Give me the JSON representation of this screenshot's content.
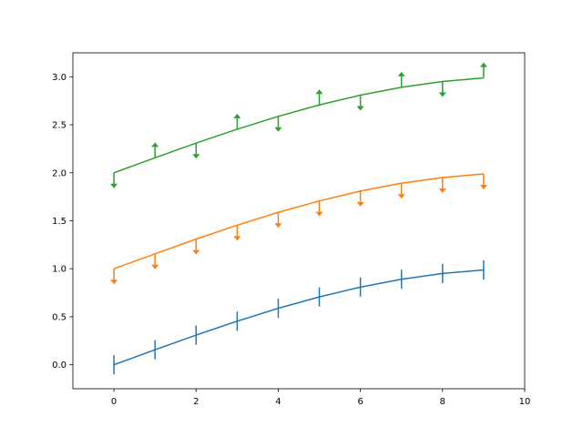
{
  "chart_data": {
    "type": "line",
    "title": "",
    "xlabel": "",
    "ylabel": "",
    "xlim": [
      -1,
      10
    ],
    "ylim": [
      -0.25,
      3.25
    ],
    "grid": false,
    "legend": "none",
    "xticks": [
      0,
      2,
      4,
      6,
      8,
      10
    ],
    "yticks": [
      0.0,
      0.5,
      1.0,
      1.5,
      2.0,
      2.5,
      3.0
    ],
    "xtick_labels": [
      "0",
      "2",
      "4",
      "6",
      "8",
      "10"
    ],
    "ytick_labels": [
      "0.0",
      "0.5",
      "1.0",
      "1.5",
      "2.0",
      "2.5",
      "3.0"
    ],
    "x": [
      0,
      1,
      2,
      3,
      4,
      5,
      6,
      7,
      8,
      9
    ],
    "series": [
      {
        "color": "#1f77b4",
        "values": [
          0.0,
          0.156,
          0.309,
          0.454,
          0.588,
          0.707,
          0.809,
          0.891,
          0.951,
          0.988
        ],
        "yerr": 0.1,
        "limits": [
          "both",
          "both",
          "both",
          "both",
          "both",
          "both",
          "both",
          "both",
          "both",
          "both"
        ]
      },
      {
        "color": "#ff7f0e",
        "values": [
          1.0,
          1.156,
          1.309,
          1.454,
          1.588,
          1.707,
          1.809,
          1.891,
          1.951,
          1.988
        ],
        "yerr": 0.1,
        "limits": [
          "upper",
          "upper",
          "upper",
          "upper",
          "upper",
          "upper",
          "upper",
          "upper",
          "upper",
          "upper"
        ]
      },
      {
        "color": "#2ca02c",
        "values": [
          2.0,
          2.156,
          2.309,
          2.454,
          2.588,
          2.707,
          2.809,
          2.891,
          2.951,
          2.988
        ],
        "yerr": 0.1,
        "limits": [
          "upper",
          "lower",
          "upper",
          "lower",
          "upper",
          "lower",
          "upper",
          "lower",
          "upper",
          "lower"
        ]
      }
    ]
  }
}
